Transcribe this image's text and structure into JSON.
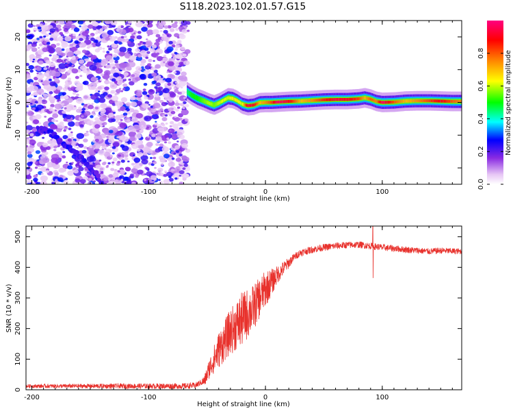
{
  "title": "S118.2023.102.01.57.G15",
  "chart_data": [
    {
      "type": "heatmap",
      "xlabel": "Height of straight line (km)",
      "ylabel": "Frequency (Hz)",
      "xlim": [
        -205,
        168
      ],
      "ylim": [
        -25,
        25
      ],
      "x_ticks": [
        -200,
        -100,
        0,
        100
      ],
      "y_ticks": [
        20,
        10,
        0,
        -10,
        -20
      ],
      "noise_region": {
        "x": [
          -205,
          -66
        ],
        "y": [
          -25,
          25
        ],
        "amplitude": [
          0.05,
          0.3
        ]
      },
      "ridge": {
        "x": [
          -67,
          -63,
          -58,
          -53,
          -48,
          -44,
          -40,
          -36,
          -32,
          -28,
          -24,
          -20,
          -15,
          -10,
          -5,
          0,
          5,
          10,
          20,
          30,
          40,
          50,
          60,
          70,
          80,
          85,
          90,
          95,
          100,
          110,
          120,
          130,
          140,
          150,
          160,
          168
        ],
        "y": [
          3.2,
          2.2,
          1.2,
          0.5,
          -0.3,
          -0.8,
          -0.2,
          0.6,
          1.4,
          1.2,
          0.5,
          -0.5,
          -1.0,
          -0.8,
          -0.1,
          0.0,
          0.0,
          0.1,
          0.3,
          0.4,
          0.6,
          0.8,
          0.9,
          0.9,
          1.1,
          1.4,
          1.0,
          0.3,
          0.0,
          0.1,
          0.4,
          0.5,
          0.5,
          0.4,
          0.3,
          0.3
        ],
        "amplitude": [
          0.45,
          0.5,
          0.5,
          0.55,
          0.6,
          0.55,
          0.6,
          0.62,
          0.6,
          0.65,
          0.65,
          0.6,
          0.95,
          0.9,
          0.7,
          0.75,
          0.82,
          0.97,
          0.9,
          0.7,
          0.75,
          0.85,
          0.92,
          0.9,
          0.82,
          0.7,
          0.8,
          0.75,
          0.97,
          0.8,
          0.7,
          0.75,
          0.82,
          0.9,
          0.8,
          0.75
        ]
      },
      "diagonal_streak": {
        "x": [
          -195,
          -185,
          -175,
          -165,
          -155,
          -145,
          -140
        ],
        "y": [
          -8,
          -9,
          -12,
          -15,
          -18,
          -22,
          -25
        ]
      },
      "colorbar": {
        "label": "Normalized spectral amplitude",
        "range": [
          0,
          1
        ],
        "ticks": [
          "0.0",
          "0.2",
          "0.4",
          "0.6",
          "0.8"
        ]
      }
    },
    {
      "type": "line",
      "xlabel": "Height of straight line (km)",
      "ylabel": "SNR (10 * v/v)",
      "xlim": [
        -205,
        168
      ],
      "ylim": [
        0,
        535
      ],
      "x_ticks": [
        -200,
        -100,
        0,
        100
      ],
      "y_ticks": [
        0,
        100,
        200,
        300,
        400,
        500
      ],
      "color": "#e8312c",
      "profile": {
        "x": [
          -205,
          -70,
          -60,
          -52,
          -48,
          -40,
          -30,
          -20,
          -10,
          -5,
          0,
          5,
          10,
          15,
          20,
          25,
          30,
          40,
          50,
          60,
          70,
          80,
          90,
          100,
          110,
          120,
          130,
          140,
          150,
          160,
          168
        ],
        "y": [
          12,
          12,
          14,
          30,
          70,
          130,
          190,
          230,
          270,
          300,
          330,
          350,
          375,
          395,
          415,
          435,
          448,
          458,
          465,
          470,
          473,
          474,
          470,
          465,
          462,
          458,
          455,
          452,
          455,
          453,
          452
        ]
      },
      "noise_amplitude": {
        "x": [
          -205,
          -55,
          -40,
          -20,
          0,
          10,
          25,
          168
        ],
        "y": [
          6,
          10,
          60,
          90,
          60,
          30,
          12,
          10
        ]
      },
      "spike": {
        "x": 92,
        "y_max": 535,
        "y_min": 365
      }
    }
  ]
}
